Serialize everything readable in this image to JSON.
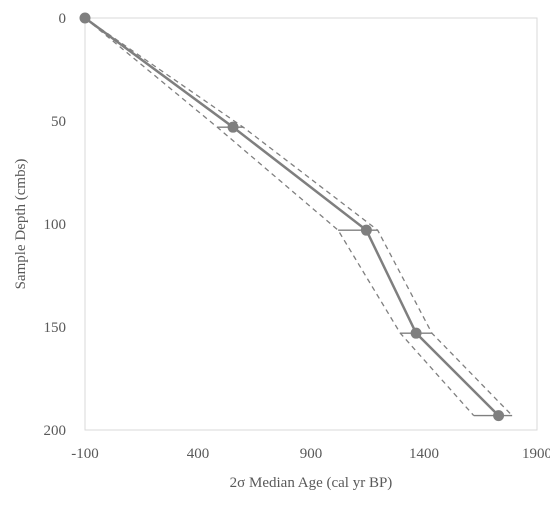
{
  "chart_data": {
    "type": "line",
    "x_label": "2σ Median Age (cal yr BP)",
    "y_label": "Sample Depth (cmbs)",
    "xlim": [
      -100,
      1900
    ],
    "xticks": [
      -100,
      400,
      900,
      1400,
      1900
    ],
    "ylim": [
      0,
      200
    ],
    "yticks": [
      0,
      50,
      100,
      150,
      200
    ],
    "y_inverted": true,
    "series": [
      {
        "color": "#7f7f7f",
        "line_style": "solid",
        "markers": true,
        "error_bars": true,
        "x": [
          -100,
          555,
          1145,
          1365,
          1730
        ],
        "values": [
          0,
          53,
          103,
          153,
          193
        ]
      },
      {
        "color": "#7f7f7f",
        "line_style": "dashed",
        "x": [
          -100,
          600,
          1195,
          1435,
          1790
        ],
        "values": [
          0,
          53,
          103,
          153,
          193
        ]
      },
      {
        "color": "#7f7f7f",
        "line_style": "dashed",
        "x": [
          -100,
          485,
          1020,
          1295,
          1620
        ],
        "values": [
          0,
          53,
          103,
          153,
          193
        ]
      }
    ]
  }
}
